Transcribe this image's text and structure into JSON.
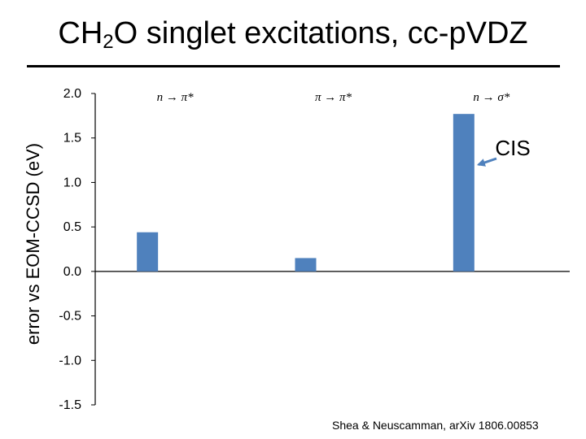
{
  "header": {
    "title_prefix": "CH",
    "title_sub": "2",
    "title_suffix": "O singlet excitations, cc-pVDZ"
  },
  "citation": "Shea & Neuscamman, arXiv 1806.00853",
  "colors": {
    "bar": "#4f81bd",
    "arrow": "#4f81bd",
    "axis": "#000000"
  },
  "chart_data": {
    "type": "bar",
    "title": "CH2O singlet excitations, cc-pVDZ",
    "xlabel": "",
    "ylabel": "error vs EOM-CCSD (eV)",
    "ylim": [
      -1.5,
      2.0
    ],
    "yticks": [
      2.0,
      1.5,
      1.0,
      0.5,
      0.0,
      -0.5,
      -1.0,
      -1.5
    ],
    "ytick_labels": [
      "2.0",
      "1.5",
      "1.0",
      "0.5",
      "0.0",
      "-0.5",
      "-1.0",
      "-1.5"
    ],
    "categories": [
      "n → π*",
      "π → π*",
      "n → σ*"
    ],
    "series": [
      {
        "name": "CIS",
        "values": [
          0.44,
          0.15,
          1.77
        ]
      }
    ],
    "grid": false,
    "annotations": [
      {
        "text": "CIS",
        "points_to": "n → σ*"
      }
    ]
  }
}
